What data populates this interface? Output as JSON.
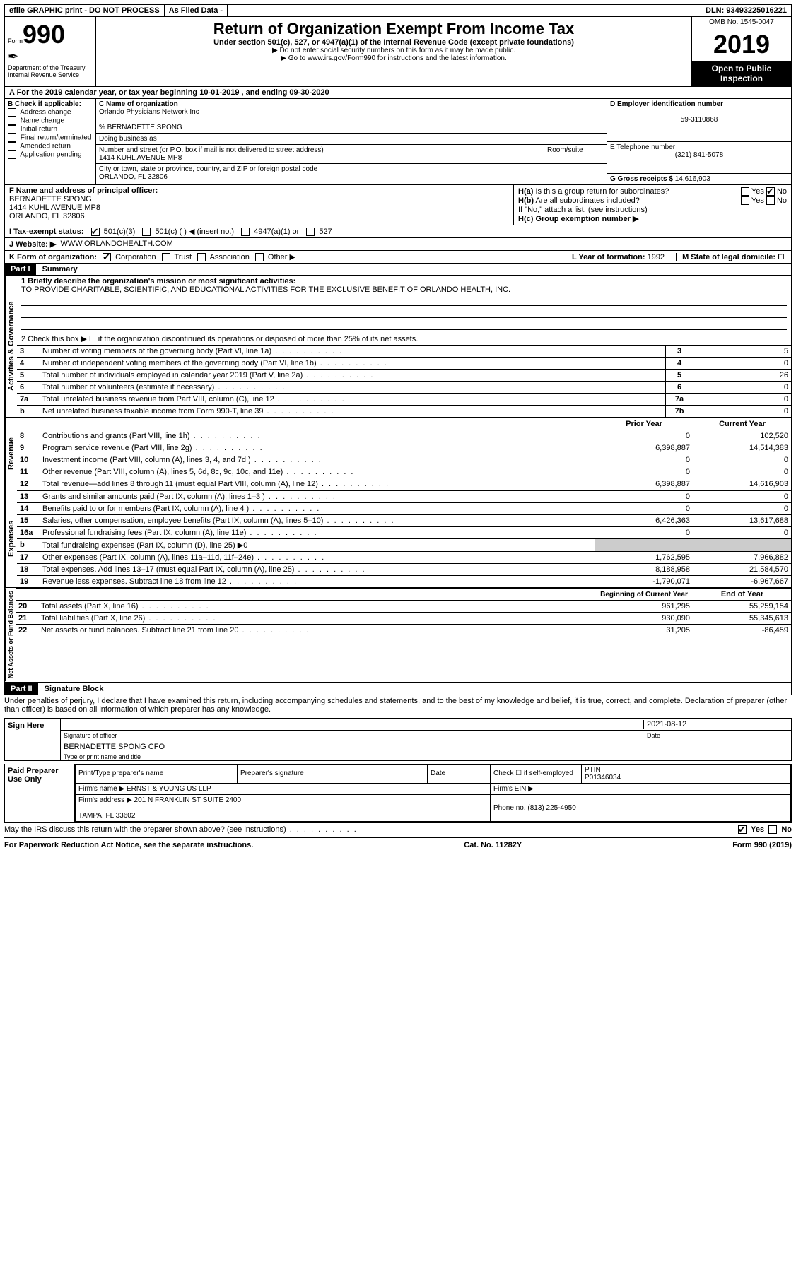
{
  "topbar": {
    "efile": "efile GRAPHIC print - DO NOT PROCESS",
    "asfiled": "As Filed Data -",
    "dln_label": "DLN:",
    "dln": "93493225016221"
  },
  "header": {
    "form_label": "Form",
    "form_num": "990",
    "dept": "Department of the Treasury\nInternal Revenue Service",
    "title": "Return of Organization Exempt From Income Tax",
    "subtitle": "Under section 501(c), 527, or 4947(a)(1) of the Internal Revenue Code (except private foundations)",
    "note1": "▶ Do not enter social security numbers on this form as it may be made public.",
    "note2_pre": "▶ Go to ",
    "note2_link": "www.irs.gov/Form990",
    "note2_post": " for instructions and the latest information.",
    "omb": "OMB No. 1545-0047",
    "year": "2019",
    "open": "Open to Public Inspection"
  },
  "rowA": {
    "text_pre": "A   For the 2019 calendar year, or tax year beginning ",
    "begin": "10-01-2019",
    "mid": "   , and ending ",
    "end": "09-30-2020"
  },
  "B": {
    "label": "B Check if applicable:",
    "items": [
      "Address change",
      "Name change",
      "Initial return",
      "Final return/terminated",
      "Amended return",
      "Application pending"
    ]
  },
  "C": {
    "name_label": "C Name of organization",
    "name": "Orlando Physicians Network Inc",
    "care_of": "% BERNADETTE SPONG",
    "dba_label": "Doing business as",
    "addr_label": "Number and street (or P.O. box if mail is not delivered to street address)",
    "room_label": "Room/suite",
    "addr": "1414 KUHL AVENUE MP8",
    "city_label": "City or town, state or province, country, and ZIP or foreign postal code",
    "city": "ORLANDO, FL  32806"
  },
  "D": {
    "label": "D Employer identification number",
    "value": "59-3110868"
  },
  "E": {
    "label": "E Telephone number",
    "value": "(321) 841-5078"
  },
  "G": {
    "label": "G Gross receipts $",
    "value": "14,616,903"
  },
  "F": {
    "label": "F  Name and address of principal officer:",
    "name": "BERNADETTE SPONG",
    "addr1": "1414 KUHL AVENUE MP8",
    "addr2": "ORLANDO, FL  32806"
  },
  "H": {
    "a": "H(a)  Is this a group return for subordinates?",
    "b": "H(b)  Are all subordinates included?",
    "b_note": "If \"No,\" attach a list. (see instructions)",
    "c": "H(c)  Group exemption number ▶",
    "yes": "Yes",
    "no": "No"
  },
  "I": {
    "label": "I   Tax-exempt status:",
    "opts": [
      "501(c)(3)",
      "501(c) (    ) ◀ (insert no.)",
      "4947(a)(1) or",
      "527"
    ]
  },
  "J": {
    "label": "J   Website: ▶",
    "value": "WWW.ORLANDOHEALTH.COM"
  },
  "K": {
    "label": "K Form of organization:",
    "opts": [
      "Corporation",
      "Trust",
      "Association",
      "Other ▶"
    ]
  },
  "L": {
    "label": "L Year of formation:",
    "value": "1992"
  },
  "M": {
    "label": "M State of legal domicile:",
    "value": "FL"
  },
  "partI": {
    "tag": "Part I",
    "title": "Summary"
  },
  "summary": {
    "line1_label": "1 Briefly describe the organization's mission or most significant activities:",
    "line1_text": "TO PROVIDE CHARITABLE, SCIENTIFIC, AND EDUCATIONAL ACTIVITIES FOR THE EXCLUSIVE BENEFIT OF ORLANDO HEALTH, INC.",
    "line2": "2   Check this box ▶ ☐ if the organization discontinued its operations or disposed of more than 25% of its net assets.",
    "rows_top": [
      {
        "n": "3",
        "label": "Number of voting members of the governing body (Part VI, line 1a)",
        "box": "3",
        "val": "5"
      },
      {
        "n": "4",
        "label": "Number of independent voting members of the governing body (Part VI, line 1b)",
        "box": "4",
        "val": "0"
      },
      {
        "n": "5",
        "label": "Total number of individuals employed in calendar year 2019 (Part V, line 2a)",
        "box": "5",
        "val": "26"
      },
      {
        "n": "6",
        "label": "Total number of volunteers (estimate if necessary)",
        "box": "6",
        "val": "0"
      },
      {
        "n": "7a",
        "label": "Total unrelated business revenue from Part VIII, column (C), line 12",
        "box": "7a",
        "val": "0"
      },
      {
        "n": "b",
        "label": "Net unrelated business taxable income from Form 990-T, line 39",
        "box": "7b",
        "val": "0"
      }
    ],
    "col_prior": "Prior Year",
    "col_current": "Current Year",
    "revenue": [
      {
        "n": "8",
        "label": "Contributions and grants (Part VIII, line 1h)",
        "p": "0",
        "c": "102,520"
      },
      {
        "n": "9",
        "label": "Program service revenue (Part VIII, line 2g)",
        "p": "6,398,887",
        "c": "14,514,383"
      },
      {
        "n": "10",
        "label": "Investment income (Part VIII, column (A), lines 3, 4, and 7d )",
        "p": "0",
        "c": "0"
      },
      {
        "n": "11",
        "label": "Other revenue (Part VIII, column (A), lines 5, 6d, 8c, 9c, 10c, and 11e)",
        "p": "0",
        "c": "0"
      },
      {
        "n": "12",
        "label": "Total revenue—add lines 8 through 11 (must equal Part VIII, column (A), line 12)",
        "p": "6,398,887",
        "c": "14,616,903"
      }
    ],
    "expenses": [
      {
        "n": "13",
        "label": "Grants and similar amounts paid (Part IX, column (A), lines 1–3 )",
        "p": "0",
        "c": "0"
      },
      {
        "n": "14",
        "label": "Benefits paid to or for members (Part IX, column (A), line 4 )",
        "p": "0",
        "c": "0"
      },
      {
        "n": "15",
        "label": "Salaries, other compensation, employee benefits (Part IX, column (A), lines 5–10)",
        "p": "6,426,363",
        "c": "13,617,688"
      },
      {
        "n": "16a",
        "label": "Professional fundraising fees (Part IX, column (A), line 11e)",
        "p": "0",
        "c": "0"
      },
      {
        "n": "b",
        "label": "Total fundraising expenses (Part IX, column (D), line 25) ▶0",
        "p": "",
        "c": ""
      },
      {
        "n": "17",
        "label": "Other expenses (Part IX, column (A), lines 11a–11d, 11f–24e)",
        "p": "1,762,595",
        "c": "7,966,882"
      },
      {
        "n": "18",
        "label": "Total expenses. Add lines 13–17 (must equal Part IX, column (A), line 25)",
        "p": "8,188,958",
        "c": "21,584,570"
      },
      {
        "n": "19",
        "label": "Revenue less expenses. Subtract line 18 from line 12",
        "p": "-1,790,071",
        "c": "-6,967,667"
      }
    ],
    "col_begin": "Beginning of Current Year",
    "col_end": "End of Year",
    "netassets": [
      {
        "n": "20",
        "label": "Total assets (Part X, line 16)",
        "p": "961,295",
        "c": "55,259,154"
      },
      {
        "n": "21",
        "label": "Total liabilities (Part X, line 26)",
        "p": "930,090",
        "c": "55,345,613"
      },
      {
        "n": "22",
        "label": "Net assets or fund balances. Subtract line 21 from line 20",
        "p": "31,205",
        "c": "-86,459"
      }
    ],
    "sections": {
      "gov": "Activities & Governance",
      "rev": "Revenue",
      "exp": "Expenses",
      "net": "Net Assets or Fund Balances"
    }
  },
  "partII": {
    "tag": "Part II",
    "title": "Signature Block"
  },
  "sig": {
    "perjury": "Under penalties of perjury, I declare that I have examined this return, including accompanying schedules and statements, and to the best of my knowledge and belief, it is true, correct, and complete. Declaration of preparer (other than officer) is based on all information of which preparer has any knowledge.",
    "sign_here": "Sign Here",
    "sig_officer": "Signature of officer",
    "date_label": "Date",
    "date": "2021-08-12",
    "officer_name": "BERNADETTE SPONG  CFO",
    "type_name": "Type or print name and title",
    "paid": "Paid Preparer Use Only",
    "prep_name_label": "Print/Type preparer's name",
    "prep_sig_label": "Preparer's signature",
    "check_self": "Check ☐ if self-employed",
    "ptin_label": "PTIN",
    "ptin": "P01346034",
    "firm_name_label": "Firm's name   ▶",
    "firm_name": "ERNST & YOUNG US LLP",
    "firm_ein_label": "Firm's EIN ▶",
    "firm_addr_label": "Firm's address ▶",
    "firm_addr1": "201 N FRANKLIN ST SUITE 2400",
    "firm_addr2": "TAMPA, FL  33602",
    "phone_label": "Phone no.",
    "phone": "(813) 225-4950",
    "discuss": "May the IRS discuss this return with the preparer shown above? (see instructions)",
    "yes": "Yes",
    "no": "No"
  },
  "footer": {
    "left": "For Paperwork Reduction Act Notice, see the separate instructions.",
    "mid": "Cat. No. 11282Y",
    "right": "Form 990 (2019)"
  }
}
